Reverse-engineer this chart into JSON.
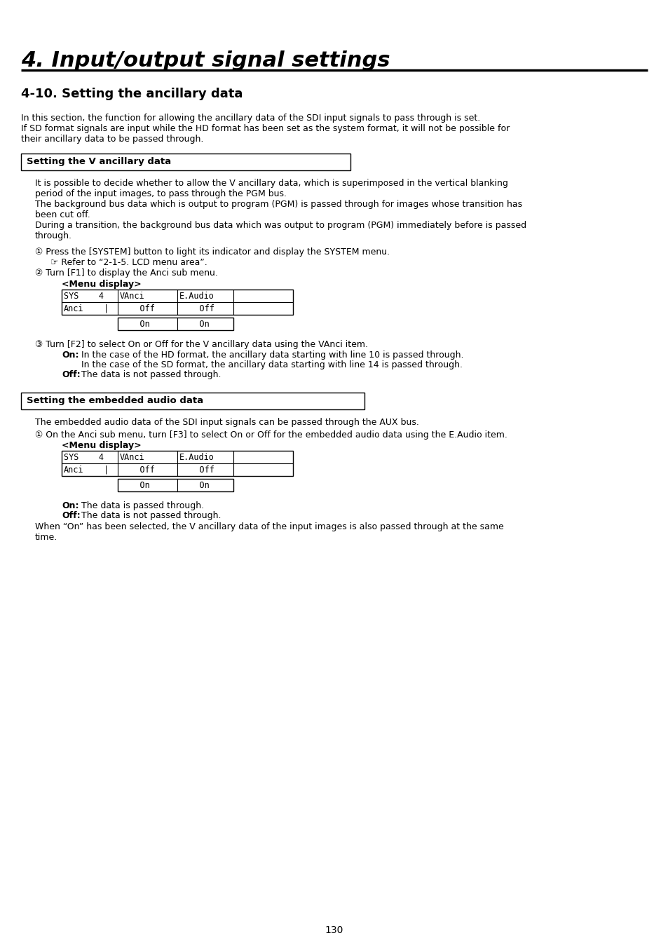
{
  "title": "4. Input/output signal settings",
  "section_title": "4-10. Setting the ancillary data",
  "intro_line1": "In this section, the function for allowing the ancillary data of the SDI input signals to pass through is set.",
  "intro_line2": "If SD format signals are input while the HD format has been set as the system format, it will not be possible for",
  "intro_line3": "their ancillary data to be passed through.",
  "box1_title": "Setting the V ancillary data",
  "body1_line1": "It is possible to decide whether to allow the V ancillary data, which is superimposed in the vertical blanking",
  "body1_line2": "period of the input images, to pass through the PGM bus.",
  "body1_line3": "The background bus data which is output to program (PGM) is passed through for images whose transition has",
  "body1_line4": "been cut off.",
  "body1_line5": "During a transition, the background bus data which was output to program (PGM) immediately before is passed",
  "body1_line6": "through.",
  "step1": "① Press the [SYSTEM] button to light its indicator and display the SYSTEM menu.",
  "step1_sub": "☞ Refer to “2-1-5. LCD menu area”.",
  "step2": "② Turn [F1] to display the Anci sub menu.",
  "menu_display": "<Menu display>",
  "step3": "③ Turn [F2] to select On or Off for the V ancillary data using the VAnci item.",
  "on_label": "On:",
  "on_line1": "In the case of the HD format, the ancillary data starting with line 10 is passed through.",
  "on_line2": "In the case of the SD format, the ancillary data starting with line 14 is passed through.",
  "off_label": "Off:",
  "off_line1": "The data is not passed through.",
  "box2_title": "Setting the embedded audio data",
  "body2_line1": "The embedded audio data of the SDI input signals can be passed through the AUX bus.",
  "step4": "① On the Anci sub menu, turn [F3] to select On or Off for the embedded audio data using the E.Audio item.",
  "menu_display2": "<Menu display>",
  "on2_label": "On:",
  "on2_line1": "The data is passed through.",
  "off2_label": "Off:",
  "off2_line1": "The data is not passed through.",
  "final_line1": "When “On” has been selected, the V ancillary data of the input images is also passed through at the same",
  "final_line2": "time.",
  "page_number": "130"
}
